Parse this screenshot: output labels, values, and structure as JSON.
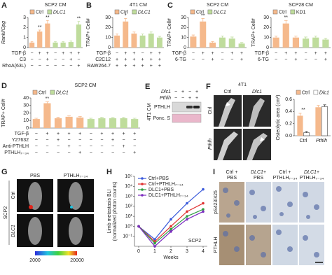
{
  "chart_data": [
    {
      "type": "bar",
      "panel": "A",
      "title": "SCP2 CM",
      "y_label": "Rankl/Opg",
      "ylim": [
        0,
        3
      ],
      "yticks": [
        0,
        1,
        2,
        3
      ],
      "series": [
        {
          "name": "Ctrl",
          "color": "#f5b98c",
          "values": [
            0.5,
            1.6,
            2.4,
            null,
            null,
            null,
            null
          ],
          "errors": [
            0.08,
            0.15,
            0.3,
            null,
            null,
            null,
            null
          ]
        },
        {
          "name": "DLC1",
          "color": "#bfdc9c",
          "values": [
            null,
            null,
            null,
            0.5,
            0.5,
            0.55,
            2.3
          ],
          "errors": [
            null,
            null,
            null,
            0.08,
            0.08,
            0.1,
            0.3
          ]
        }
      ],
      "significance": [
        null,
        "**",
        "**",
        null,
        null,
        null,
        "**"
      ],
      "conditions": [
        {
          "label": "TGF-β",
          "signs": [
            "−",
            "+",
            "+",
            "−",
            "+",
            "+",
            "+"
          ]
        },
        {
          "label": "C3",
          "signs": [
            "−",
            "−",
            "+",
            "−",
            "−",
            "+",
            "−"
          ]
        },
        {
          "label": "RhoA(63L)",
          "signs": [
            "−",
            "−",
            "−",
            "−",
            "−",
            "−",
            "+"
          ]
        }
      ]
    },
    {
      "type": "bar",
      "panel": "B",
      "title": "4T1 CM",
      "y_label": "TRAP+ Cell#",
      "ylim": [
        0,
        30
      ],
      "yticks": [
        0,
        10,
        20,
        30
      ],
      "series": [
        {
          "name": "Ctrl",
          "color": "#f5b98c",
          "values": [
            12,
            26,
            14,
            null,
            null,
            null
          ],
          "errors": [
            1.5,
            3,
            1.5,
            null,
            null,
            null
          ]
        },
        {
          "name": "DLC1",
          "color": "#bfdc9c",
          "values": [
            null,
            null,
            null,
            12,
            14,
            10
          ],
          "errors": [
            null,
            null,
            null,
            1.5,
            1.5,
            1.2
          ]
        }
      ],
      "significance": [
        null,
        "*",
        null,
        null,
        null,
        null
      ],
      "conditions": [
        {
          "label": "TGF-β",
          "signs": [
            "−",
            "+",
            "+",
            "−",
            "+",
            "+"
          ]
        },
        {
          "label": "C2C12",
          "signs": [
            "+",
            "+",
            "+",
            "+",
            "+",
            "+"
          ]
        },
        {
          "label": "RAW264.7",
          "signs": [
            "+",
            "+",
            "+",
            "+",
            "+",
            "+"
          ]
        }
      ]
    },
    {
      "type": "bar",
      "panel": "C",
      "title": "SCP2 CM",
      "y_label": "TRAP+ Cell#",
      "ylim": [
        0,
        30
      ],
      "yticks": [
        0,
        10,
        20,
        30
      ],
      "series": [
        {
          "name": "Ctrl",
          "color": "#f5b98c",
          "values": [
            11,
            26,
            5,
            null,
            null,
            null
          ],
          "errors": [
            1.5,
            3,
            1,
            null,
            null,
            null
          ]
        },
        {
          "name": "DLC1",
          "color": "#bfdc9c",
          "values": [
            null,
            null,
            null,
            10,
            9,
            4
          ],
          "errors": [
            null,
            null,
            null,
            1.5,
            1.5,
            1
          ]
        }
      ],
      "significance": [
        null,
        "**",
        null,
        null,
        null,
        null
      ],
      "conditions": [
        {
          "label": "TGF-β",
          "signs": [
            "−",
            "+",
            "+",
            "−",
            "+",
            "+"
          ]
        },
        {
          "label": "6-TG",
          "signs": [
            "−",
            "−",
            "+",
            "−",
            "−",
            "+"
          ]
        }
      ]
    },
    {
      "type": "bar",
      "title": "SCP28 CM",
      "y_label": "TRAP+ Cell#",
      "ylim": [
        0,
        30
      ],
      "yticks": [
        0,
        10,
        20,
        30
      ],
      "series": [
        {
          "name": "Ctrl",
          "color": "#f5b98c",
          "values": [
            10,
            24,
            10,
            null,
            null,
            null
          ],
          "errors": [
            1.5,
            3,
            1.5,
            null,
            null,
            null
          ]
        },
        {
          "name": "KD1",
          "color": "#bfdc9c",
          "values": [
            null,
            null,
            null,
            9,
            10,
            8
          ],
          "errors": [
            null,
            null,
            null,
            1.5,
            1.5,
            1.2
          ]
        }
      ],
      "significance": [
        null,
        "**",
        null,
        null,
        null,
        null
      ],
      "conditions": [
        {
          "label": "TGF-β",
          "signs": [
            "−",
            "+",
            "+",
            "−",
            "+",
            "+"
          ]
        },
        {
          "label": "6-TG",
          "signs": [
            "−",
            "−",
            "+",
            "−",
            "−",
            "+"
          ]
        }
      ]
    },
    {
      "type": "bar",
      "panel": "D",
      "title": "SCP2 CM",
      "y_label": "TRAP+ Cell#",
      "ylim": [
        0,
        40
      ],
      "yticks": [
        0,
        10,
        20,
        30,
        40
      ],
      "series": [
        {
          "name": "Ctrl",
          "color": "#f5b98c",
          "values": [
            12,
            33,
            13,
            15,
            14,
            null,
            null,
            null,
            null,
            null
          ],
          "errors": [
            1,
            2,
            1.5,
            1.5,
            1.5,
            null,
            null,
            null,
            null,
            null
          ]
        },
        {
          "name": "DLC1",
          "color": "#bfdc9c",
          "values": [
            null,
            null,
            null,
            null,
            null,
            12,
            13,
            13,
            13,
            12
          ],
          "errors": [
            null,
            null,
            null,
            null,
            null,
            1,
            1.5,
            1,
            1,
            1
          ]
        }
      ],
      "significance": [
        null,
        "**",
        null,
        null,
        null,
        null,
        null,
        null,
        null,
        null
      ],
      "conditions": [
        {
          "label": "TGF-β",
          "signs": [
            "−",
            "+",
            "+",
            "+",
            "+",
            "−",
            "+",
            "+",
            "+",
            "+"
          ]
        },
        {
          "label": "Y27632",
          "signs": [
            "−",
            "−",
            "+",
            "−",
            "−",
            "−",
            "−",
            "+",
            "−",
            "−"
          ]
        },
        {
          "label": "Anti-PTHLH",
          "signs": [
            "−",
            "−",
            "−",
            "+",
            "−",
            "−",
            "−",
            "−",
            "+",
            "−"
          ]
        },
        {
          "label": "PTHLH₇₋₃₄",
          "signs": [
            "−",
            "−",
            "−",
            "−",
            "+",
            "−",
            "−",
            "−",
            "−",
            "+"
          ]
        }
      ]
    },
    {
      "type": "bar",
      "y_label": "Osteolytic area (cm²)",
      "ylim": [
        0,
        0.6
      ],
      "yticks": [
        {
          "value": 0,
          "label": "0.0"
        },
        0.2,
        0.4,
        0.6
      ],
      "categories": [
        "Ctrl",
        "Pthlh"
      ],
      "series": [
        {
          "name": "Ctrl",
          "color": "#f5b98c",
          "values": [
            0.33,
            0.47
          ],
          "errors": [
            0.04,
            0.03
          ]
        },
        {
          "name": "Dlc1",
          "color": "#ffffff",
          "values": [
            0.05,
            0.48
          ],
          "errors": [
            0.02,
            0.03
          ]
        }
      ],
      "significance": [
        "**",
        null
      ]
    },
    {
      "type": "line",
      "panel": "H",
      "y_label": [
        "Limb metastasis BLI",
        "(normalized photon counts)"
      ],
      "x_label": "Weeks",
      "annotation": "SCP2",
      "log_y": true,
      "x": [
        0,
        1,
        2,
        3,
        4
      ],
      "xlim": [
        0,
        4
      ],
      "xticks": [
        0,
        1,
        2,
        3,
        4
      ],
      "ylim": [
        0.01,
        100000
      ],
      "yticks": [
        {
          "value": 0.1,
          "label": "10⁻¹"
        },
        {
          "value": 1,
          "label": "10⁰"
        },
        {
          "value": 10,
          "label": "10¹"
        },
        {
          "value": 100,
          "label": "10²"
        },
        {
          "value": 1000,
          "label": "10³"
        },
        {
          "value": 10000,
          "label": "10⁴"
        },
        {
          "value": 100000,
          "label": "10⁵"
        }
      ],
      "series": [
        {
          "name": "Ctrl+PBS",
          "color": "#3b5bdb",
          "values": [
            1,
            0.05,
            5,
            200,
            5000
          ]
        },
        {
          "name": "Ctrl+PTHLH₇₋₃₄",
          "color": "#e03131",
          "values": [
            1,
            0.03,
            1,
            30,
            200
          ]
        },
        {
          "name": "DLC1+PBS",
          "color": "#2f9e44",
          "values": [
            1,
            0.02,
            0.5,
            10,
            50
          ]
        },
        {
          "name": "DLC1+PTHLH₇₋₃₄",
          "color": "#7b2cbf",
          "values": [
            1,
            0.01,
            0.3,
            5,
            30
          ]
        }
      ]
    }
  ],
  "blot": {
    "panel": "E",
    "cm_label": "4T1 CM",
    "rows": [
      {
        "label": "Dlc1",
        "signs": [
          "−",
          "+",
          "−",
          "+"
        ]
      },
      {
        "label": "Pthlh",
        "signs": [
          "−",
          "−",
          "+",
          "+"
        ]
      }
    ],
    "bands": [
      "PTHLH",
      "Ponc. S"
    ]
  },
  "xray": {
    "panel": "F",
    "title": "4T1",
    "columns": [
      "Ctrl",
      "Dlc1"
    ],
    "rows": [
      "Ctrl",
      "Pthlh"
    ]
  },
  "mice": {
    "panel": "G",
    "columns": [
      "PBS",
      "PTHLH₇₋₃₄"
    ],
    "group": "SCP2",
    "rows": [
      "Ctrl",
      "DLC1"
    ],
    "scale": [
      2000,
      20000
    ]
  },
  "ihc": {
    "panel": "I",
    "columns": [
      [
        "Ctrl +",
        "PBS"
      ],
      [
        "DLC1+",
        "PBS"
      ],
      [
        "Ctrl +",
        "PTHLH₇₋₃₄"
      ],
      [
        "DLC1+",
        "PTHLH₇₋₃₄"
      ]
    ],
    "rows": [
      "pS423/425",
      "PTHLH"
    ]
  }
}
